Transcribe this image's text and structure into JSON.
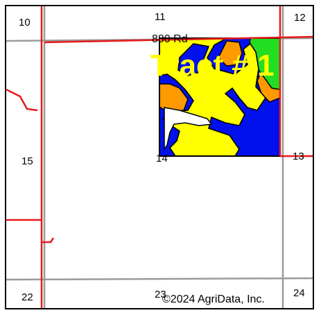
{
  "map": {
    "section_labels": [
      "10",
      "11",
      "12",
      "15",
      "14",
      "13",
      "22",
      "23",
      "24"
    ],
    "road_label": "880 Rd",
    "tract_label": "Tract # 1",
    "copyright": "©2024 AgriData, Inc.",
    "colors": {
      "road_red": "#e8191a",
      "section_grey": "#9a9a9a",
      "soil_blue": "#0011ee",
      "soil_yellow": "#ffff00",
      "soil_orange": "#ff9900",
      "soil_green": "#22dd22",
      "outline": "#000000"
    }
  }
}
